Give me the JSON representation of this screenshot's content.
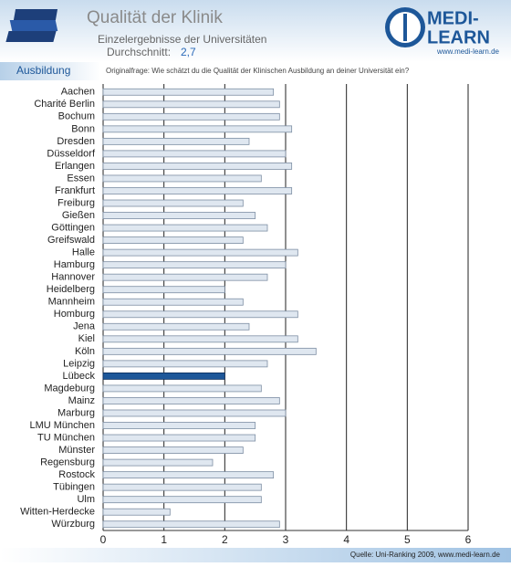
{
  "header": {
    "title": "Qualität der Klinik",
    "subtitle": "Einzelergebnisse der Universitäten",
    "average_label": "Durchschnitt:",
    "average_value": "2,7"
  },
  "logo": {
    "line1": "MEDI-",
    "line2": "LEARN",
    "url": "www.medi-learn.de"
  },
  "section": "Ausbildung",
  "question": "Originalfrage: Wie schätzt du die Qualität der Klinischen Ausbildung an deiner Universität ein?",
  "source": "Quelle: Uni-Ranking 2009, www.medi-learn.de",
  "chart_data": {
    "type": "bar",
    "orientation": "horizontal",
    "categories": [
      "Aachen",
      "Charité Berlin",
      "Bochum",
      "Bonn",
      "Dresden",
      "Düsseldorf",
      "Erlangen",
      "Essen",
      "Frankfurt",
      "Freiburg",
      "Gießen",
      "Göttingen",
      "Greifswald",
      "Halle",
      "Hamburg",
      "Hannover",
      "Heidelberg",
      "Mannheim",
      "Homburg",
      "Jena",
      "Kiel",
      "Köln",
      "Leipzig",
      "Lübeck",
      "Magdeburg",
      "Mainz",
      "Marburg",
      "LMU München",
      "TU München",
      "Münster",
      "Regensburg",
      "Rostock",
      "Tübingen",
      "Ulm",
      "Witten-Herdecke",
      "Würzburg"
    ],
    "values": [
      2.8,
      2.9,
      2.9,
      3.1,
      2.4,
      3.0,
      3.1,
      2.6,
      3.1,
      2.3,
      2.5,
      2.7,
      2.3,
      3.2,
      3.0,
      2.7,
      2.0,
      2.3,
      3.2,
      2.4,
      3.2,
      3.5,
      2.7,
      2.0,
      2.6,
      2.9,
      3.0,
      2.5,
      2.5,
      2.3,
      1.8,
      2.8,
      2.6,
      2.6,
      1.1,
      2.9
    ],
    "color": "#dfe7f0",
    "highlight": "Lübeck",
    "highlight_color": "#1d5799",
    "xlim": [
      0,
      6
    ],
    "xticks": [
      0,
      1,
      2,
      3,
      4,
      5,
      6
    ],
    "grid": true
  }
}
